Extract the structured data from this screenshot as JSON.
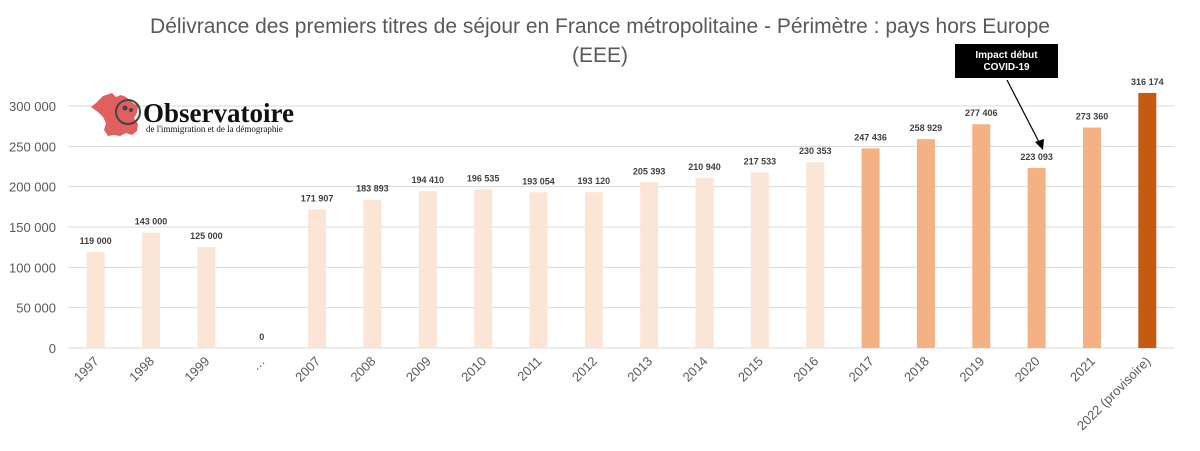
{
  "chart_data": {
    "type": "bar",
    "title_line1": "Délivrance des premiers titres de séjour en France métropolitaine - Périmètre : pays hors Europe",
    "title_line2": "(EEE)",
    "categories": [
      "1997",
      "1998",
      "1999",
      "…",
      "2007",
      "2008",
      "2009",
      "2010",
      "2011",
      "2012",
      "2013",
      "2014",
      "2015",
      "2016",
      "2017",
      "2018",
      "2019",
      "2020",
      "2021",
      "2022 (provisoire)"
    ],
    "values": [
      119000,
      143000,
      125000,
      0,
      171907,
      183893,
      194410,
      196535,
      193054,
      193120,
      205393,
      210940,
      217533,
      230353,
      247436,
      258929,
      277406,
      223093,
      273360,
      316174
    ],
    "value_labels": [
      "119 000",
      "143 000",
      "125 000",
      "0",
      "171 907",
      "183 893",
      "194 410",
      "196 535",
      "193 054",
      "193 120",
      "205 393",
      "210 940",
      "217 533",
      "230 353",
      "247 436",
      "258 929",
      "277 406",
      "223 093",
      "273 360",
      "316 174"
    ],
    "bar_colors": [
      "#fbe5d6",
      "#fbe5d6",
      "#fbe5d6",
      "#fbe5d6",
      "#fbe5d6",
      "#fbe5d6",
      "#fbe5d6",
      "#fbe5d6",
      "#fbe5d6",
      "#fbe5d6",
      "#fbe5d6",
      "#fbe5d6",
      "#fbe5d6",
      "#fbe5d6",
      "#f4b183",
      "#f4b183",
      "#f4b183",
      "#f4b183",
      "#f4b183",
      "#c55a11"
    ],
    "ylim": [
      0,
      300000
    ],
    "yticks": [
      0,
      50000,
      100000,
      150000,
      200000,
      250000,
      300000
    ],
    "ytick_labels": [
      "0",
      "50 000",
      "100 000",
      "150 000",
      "200 000",
      "250 000",
      "300 000"
    ],
    "grid": true,
    "xlabel": "",
    "ylabel": "",
    "annotation": {
      "lines": [
        "Impact début",
        "COVID-19"
      ],
      "target_category": "2020",
      "background": "#000000",
      "text_color": "#ffffff"
    }
  },
  "logo": {
    "main_text": "Observatoire",
    "sub_text": "de l'immigration et de la démographie",
    "map_color": "#e06060"
  },
  "colors": {
    "title": "#595959",
    "axis_text": "#595959",
    "gridline": "#d9d9d9",
    "value_label": "#404040"
  }
}
